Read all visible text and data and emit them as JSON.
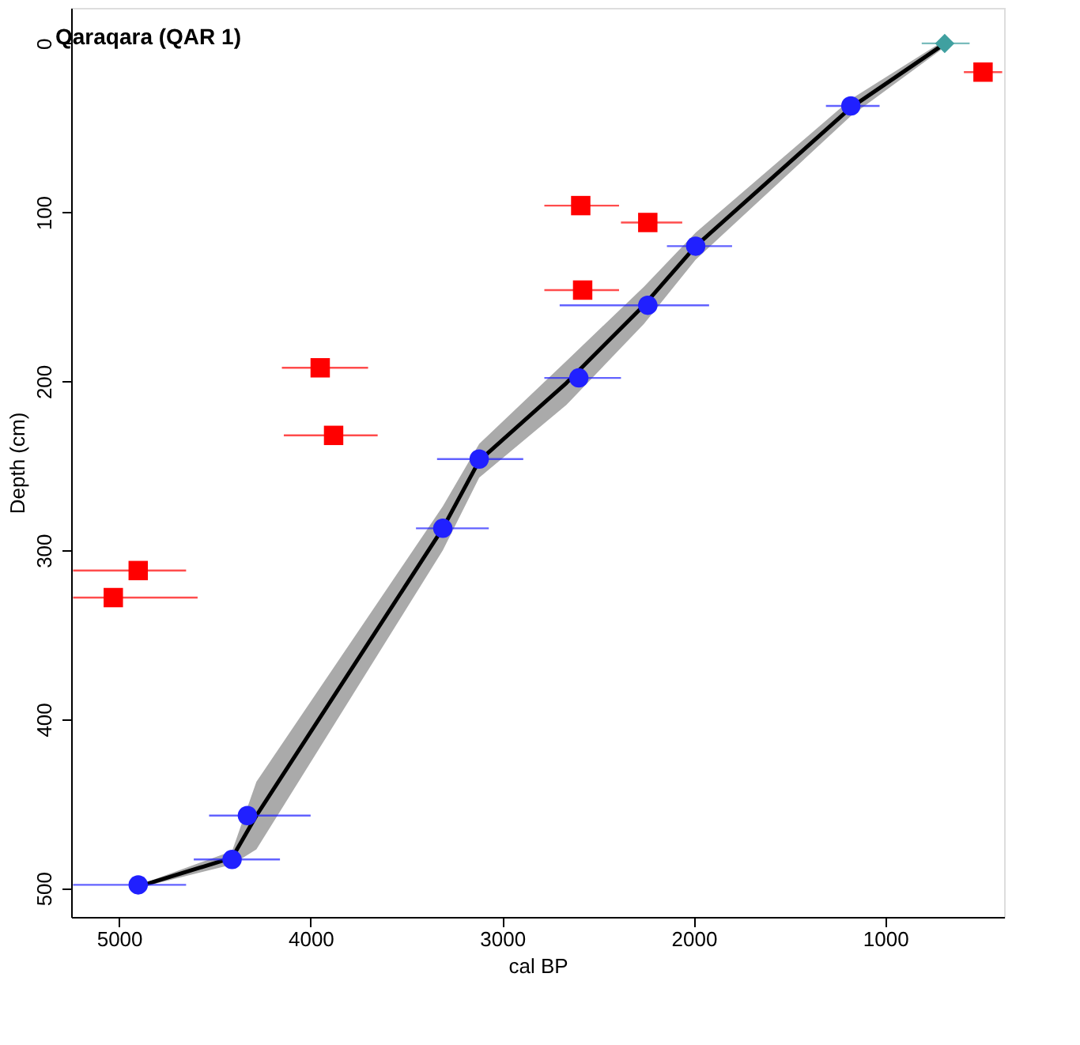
{
  "chart_data": {
    "type": "line",
    "title": "Qaraqara (QAR 1)",
    "xlabel": "cal BP",
    "ylabel": "Depth (cm)",
    "xlim": [
      5250,
      380
    ],
    "xticks": [
      5000,
      4000,
      3000,
      2000,
      1000
    ],
    "ylim": [
      517,
      -21
    ],
    "yticks": [
      0,
      100,
      200,
      300,
      400,
      500
    ],
    "grid": false,
    "series": [
      {
        "color": "#000000",
        "line_style": "solid",
        "marker": "none",
        "x": [
          688,
          1180,
          1990,
          2260,
          2665,
          3120,
          3310,
          4283,
          4410,
          4870
        ],
        "values": [
          0,
          38,
          120,
          155,
          201,
          247,
          287,
          457,
          482,
          498
        ],
        "lower": [
          -2,
          33,
          112,
          144,
          188,
          237,
          274,
          437,
          478,
          497
        ],
        "upper": [
          2,
          43,
          128,
          166,
          214,
          257,
          300,
          477,
          486,
          499
        ]
      },
      {
        "type": "scatter",
        "color": "#2020ff",
        "marker": "circle",
        "x": [
          1180,
          1990,
          2240,
          2600,
          3120,
          3310,
          4330,
          4410,
          4900
        ],
        "values": [
          37,
          120,
          155,
          198,
          246,
          287,
          457,
          483,
          498
        ],
        "xerrors": [
          [
            1030,
            1310
          ],
          [
            1800,
            2140
          ],
          [
            1920,
            2700
          ],
          [
            2380,
            2780
          ],
          [
            2890,
            3340
          ],
          [
            3070,
            3450
          ],
          [
            4000,
            4530
          ],
          [
            4160,
            4610
          ],
          [
            4650,
            5240
          ]
        ]
      },
      {
        "type": "scatter",
        "color": "#ff0000",
        "marker": "square",
        "x": [
          490,
          2590,
          2240,
          2580,
          3950,
          3880,
          4900,
          5030
        ],
        "values": [
          17,
          96,
          106,
          146,
          192,
          232,
          312,
          328
        ],
        "xerrors": [
          [
            390,
            590
          ],
          [
            2390,
            2780
          ],
          [
            2060,
            2380
          ],
          [
            2390,
            2780
          ],
          [
            3700,
            4150
          ],
          [
            3650,
            4140
          ],
          [
            4650,
            5240
          ],
          [
            4590,
            5240
          ]
        ]
      },
      {
        "type": "scatter",
        "color": "#40a0a0",
        "marker": "diamond",
        "x": [
          690
        ],
        "values": [
          0
        ],
        "xerrors": [
          [
            560,
            810
          ]
        ]
      }
    ]
  }
}
